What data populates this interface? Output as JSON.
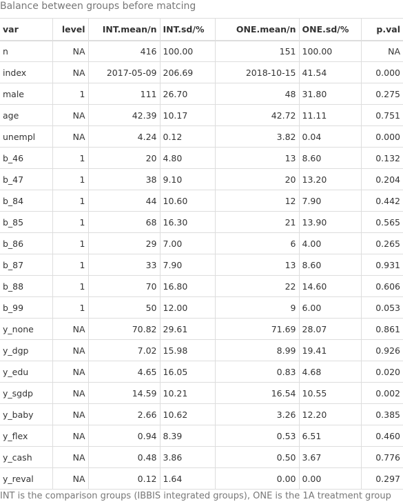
{
  "caption": "Balance between groups before matcing",
  "footer": "INT is the comparison groups (IBBIS integrated groups), ONE is the 1A treatment group",
  "columns": [
    "var",
    "level",
    "INT.mean/n",
    "INT.sd/%",
    "ONE.mean/n",
    "ONE.sd/%",
    "p.val"
  ],
  "rows": [
    [
      "n",
      "NA",
      "416",
      "100.00",
      "151",
      "100.00",
      "NA"
    ],
    [
      "index",
      "NA",
      "2017-05-09",
      "206.69",
      "2018-10-15",
      "41.54",
      "0.000"
    ],
    [
      "male",
      "1",
      "111",
      "26.70",
      "48",
      "31.80",
      "0.275"
    ],
    [
      "age",
      "NA",
      "42.39",
      "10.17",
      "42.72",
      "11.11",
      "0.751"
    ],
    [
      "unempl",
      "NA",
      "4.24",
      "0.12",
      "3.82",
      "0.04",
      "0.000"
    ],
    [
      "b_46",
      "1",
      "20",
      "4.80",
      "13",
      "8.60",
      "0.132"
    ],
    [
      "b_47",
      "1",
      "38",
      "9.10",
      "20",
      "13.20",
      "0.204"
    ],
    [
      "b_84",
      "1",
      "44",
      "10.60",
      "12",
      "7.90",
      "0.442"
    ],
    [
      "b_85",
      "1",
      "68",
      "16.30",
      "21",
      "13.90",
      "0.565"
    ],
    [
      "b_86",
      "1",
      "29",
      "7.00",
      "6",
      "4.00",
      "0.265"
    ],
    [
      "b_87",
      "1",
      "33",
      "7.90",
      "13",
      "8.60",
      "0.931"
    ],
    [
      "b_88",
      "1",
      "70",
      "16.80",
      "22",
      "14.60",
      "0.606"
    ],
    [
      "b_99",
      "1",
      "50",
      "12.00",
      "9",
      "6.00",
      "0.053"
    ],
    [
      "y_none",
      "NA",
      "70.82",
      "29.61",
      "71.69",
      "28.07",
      "0.861"
    ],
    [
      "y_dgp",
      "NA",
      "7.02",
      "15.98",
      "8.99",
      "19.41",
      "0.926"
    ],
    [
      "y_edu",
      "NA",
      "4.65",
      "16.05",
      "0.83",
      "4.68",
      "0.020"
    ],
    [
      "y_sgdp",
      "NA",
      "14.59",
      "10.21",
      "16.54",
      "10.55",
      "0.002"
    ],
    [
      "y_baby",
      "NA",
      "2.66",
      "10.62",
      "3.26",
      "12.20",
      "0.385"
    ],
    [
      "y_flex",
      "NA",
      "0.94",
      "8.39",
      "0.53",
      "6.51",
      "0.460"
    ],
    [
      "y_cash",
      "NA",
      "0.48",
      "3.86",
      "0.50",
      "3.67",
      "0.776"
    ],
    [
      "y_reval",
      "NA",
      "0.12",
      "1.64",
      "0.00",
      "0.00",
      "0.297"
    ]
  ]
}
